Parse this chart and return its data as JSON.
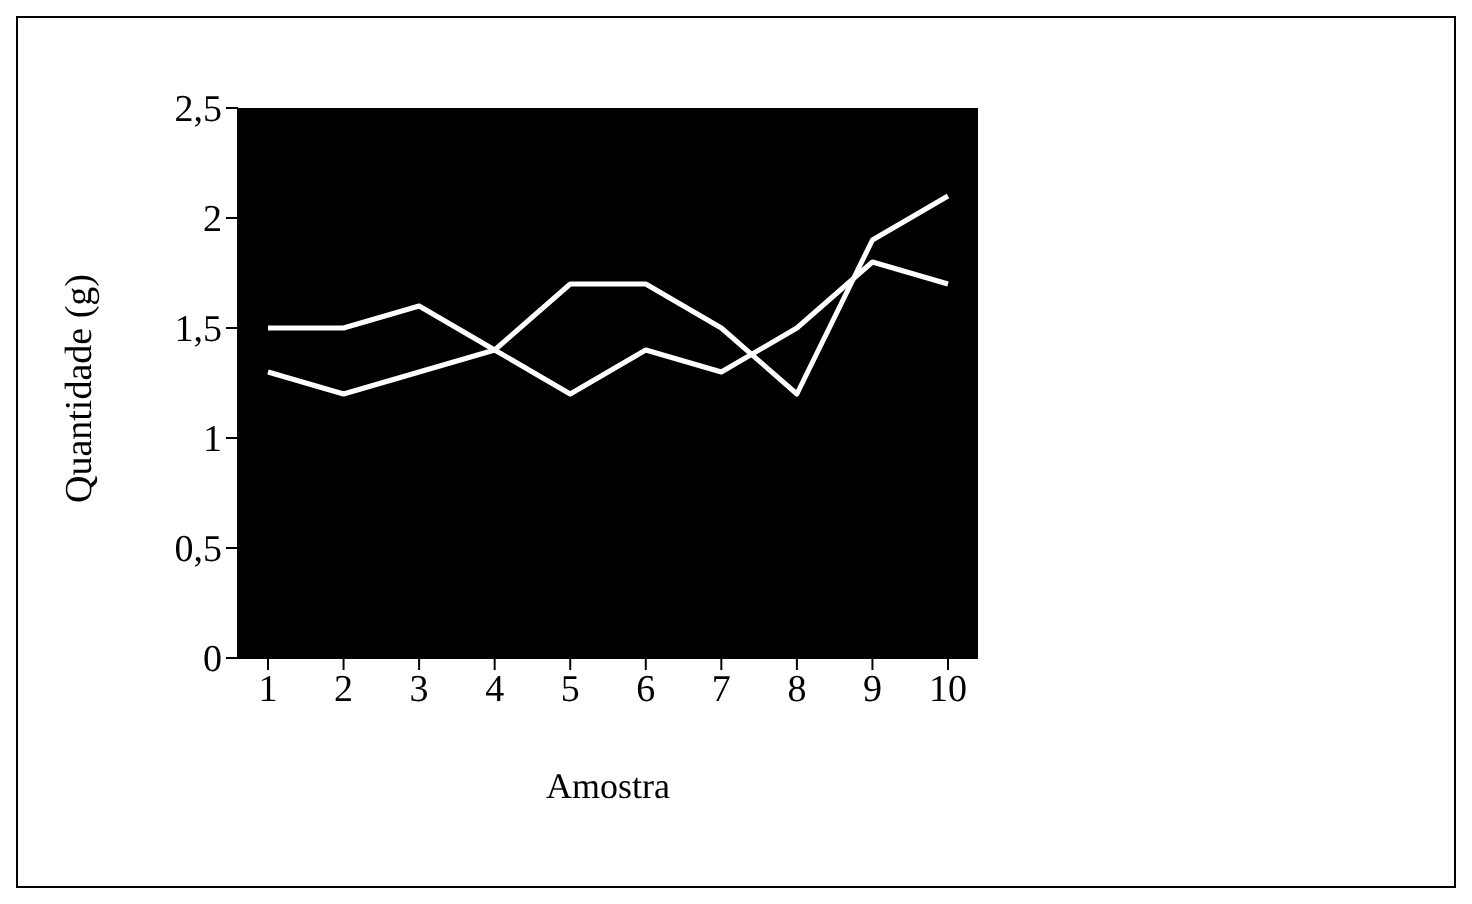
{
  "chart_data": {
    "type": "line",
    "xlabel": "Amostra",
    "ylabel": "Quantidade (g)",
    "categories": [
      "1",
      "2",
      "3",
      "4",
      "5",
      "6",
      "7",
      "8",
      "9",
      "10"
    ],
    "series": [
      {
        "color": "#ffffff",
        "values": [
          1.5,
          1.5,
          1.6,
          1.4,
          1.2,
          1.4,
          1.3,
          1.5,
          1.8,
          1.7
        ]
      },
      {
        "color": "#ffffff",
        "values": [
          1.3,
          1.2,
          1.3,
          1.4,
          1.7,
          1.7,
          1.5,
          1.2,
          1.9,
          2.1
        ]
      }
    ],
    "ylim": [
      0,
      2.5
    ],
    "yticks": [
      0,
      {
        "value": 0.5,
        "label": "0,5"
      },
      1,
      {
        "value": 1.5,
        "label": "1,5"
      },
      2,
      {
        "value": 2.5,
        "label": "2,5"
      }
    ],
    "grid": false,
    "marker": "none",
    "line_style": "solid"
  }
}
